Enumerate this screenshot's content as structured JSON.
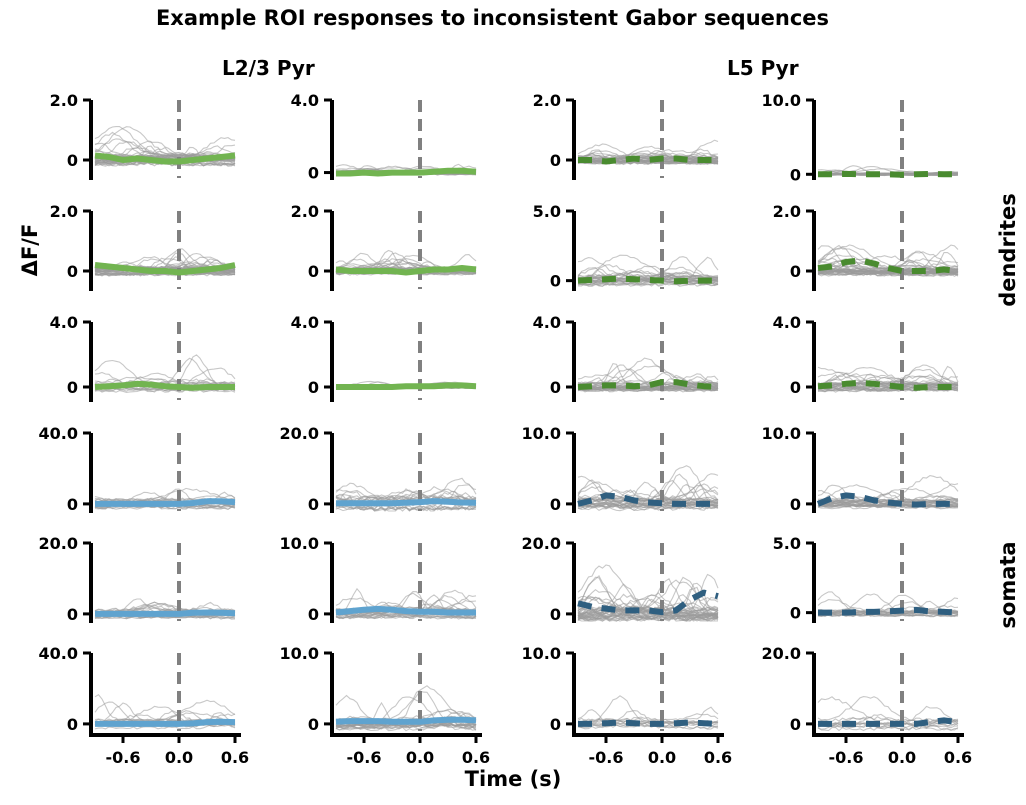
{
  "figure": {
    "title": "Example ROI responses to inconsistent Gabor sequences",
    "xlabel": "Time (s)",
    "ylabel": "ΔF/F",
    "columns": [
      "L2/3 Pyr",
      "",
      "L5 Pyr",
      ""
    ],
    "column_titles": [
      {
        "text": "L2/3 Pyr"
      },
      {
        "text": "L5 Pyr"
      }
    ],
    "row_groups": [
      {
        "label": "dendrites"
      },
      {
        "label": "somata"
      }
    ]
  },
  "colors": {
    "dendrites_l23": "#72b451",
    "dendrites_l5": "#4a8b30",
    "somata_l23": "#5fa3cf",
    "somata_l5": "#2f5f80",
    "traces": "#9a9a9a",
    "onset_line": "#808080"
  },
  "chart_data": {
    "type": "line",
    "x_range": [
      -0.9,
      0.6
    ],
    "x_ticks": [
      -0.6,
      0.0,
      0.6
    ],
    "x_tick_labels": [
      "-0.6",
      "0.0",
      "0.6"
    ],
    "onset_x": 0.0,
    "panels": [
      {
        "row": 0,
        "col": 0,
        "group": "dendrites",
        "celltype": "L2/3 Pyr",
        "ytick_labels": [
          "0",
          "2.0"
        ],
        "ytick_values": [
          0,
          2.0
        ],
        "ylim": [
          -0.6,
          2.0
        ],
        "n_traces": 40,
        "trace_peak": 1.3,
        "mean_style": "solid",
        "mean_x": [
          -0.9,
          -0.75,
          -0.6,
          -0.45,
          -0.3,
          -0.15,
          0.0,
          0.15,
          0.3,
          0.45,
          0.6
        ],
        "mean_y": [
          0.15,
          0.1,
          0.0,
          0.05,
          0.0,
          -0.05,
          -0.05,
          0.0,
          0.05,
          0.1,
          0.15
        ]
      },
      {
        "row": 0,
        "col": 1,
        "group": "dendrites",
        "celltype": "L2/3 Pyr",
        "ytick_labels": [
          "0",
          "4.0"
        ],
        "ytick_values": [
          0,
          4.0
        ],
        "ylim": [
          -0.3,
          4.0
        ],
        "n_traces": 25,
        "trace_peak": 0.9,
        "mean_style": "solid",
        "mean_x": [
          -0.9,
          -0.75,
          -0.6,
          -0.45,
          -0.3,
          -0.15,
          0.0,
          0.15,
          0.3,
          0.45,
          0.6
        ],
        "mean_y": [
          -0.05,
          -0.05,
          0.0,
          -0.05,
          0.0,
          0.0,
          0.0,
          0.05,
          0.1,
          0.1,
          0.05
        ]
      },
      {
        "row": 0,
        "col": 2,
        "group": "dendrites",
        "celltype": "L5 Pyr",
        "ytick_labels": [
          "0",
          "2.0"
        ],
        "ytick_values": [
          0,
          2.0
        ],
        "ylim": [
          -0.6,
          2.0
        ],
        "n_traces": 35,
        "trace_peak": 1.0,
        "mean_style": "dashed",
        "mean_x": [
          -0.9,
          -0.75,
          -0.6,
          -0.45,
          -0.3,
          -0.15,
          0.0,
          0.15,
          0.3,
          0.45,
          0.6
        ],
        "mean_y": [
          0.0,
          0.0,
          -0.05,
          0.0,
          0.05,
          0.0,
          0.05,
          0.05,
          0.0,
          0.0,
          0.0
        ]
      },
      {
        "row": 0,
        "col": 3,
        "group": "dendrites",
        "celltype": "L5 Pyr",
        "ytick_labels": [
          "0",
          "10.0"
        ],
        "ytick_values": [
          0,
          10.0
        ],
        "ylim": [
          -0.5,
          10.0
        ],
        "n_traces": 20,
        "trace_peak": 1.2,
        "mean_style": "dashed",
        "mean_x": [
          -0.9,
          -0.75,
          -0.6,
          -0.45,
          -0.3,
          -0.15,
          0.0,
          0.15,
          0.3,
          0.45,
          0.6
        ],
        "mean_y": [
          0.0,
          0.0,
          0.05,
          0.0,
          0.0,
          0.0,
          -0.05,
          0.0,
          0.05,
          0.0,
          0.0
        ]
      },
      {
        "row": 1,
        "col": 0,
        "group": "dendrites",
        "celltype": "L2/3 Pyr",
        "ytick_labels": [
          "0",
          "2.0"
        ],
        "ytick_values": [
          0,
          2.0
        ],
        "ylim": [
          -0.6,
          2.0
        ],
        "n_traces": 40,
        "trace_peak": 1.1,
        "mean_style": "solid",
        "mean_x": [
          -0.9,
          -0.75,
          -0.6,
          -0.45,
          -0.3,
          -0.15,
          0.0,
          0.15,
          0.3,
          0.45,
          0.6
        ],
        "mean_y": [
          0.2,
          0.15,
          0.1,
          0.05,
          0.0,
          0.0,
          -0.05,
          0.0,
          0.05,
          0.1,
          0.2
        ]
      },
      {
        "row": 1,
        "col": 1,
        "group": "dendrites",
        "celltype": "L2/3 Pyr",
        "ytick_labels": [
          "0",
          "2.0"
        ],
        "ytick_values": [
          0,
          2.0
        ],
        "ylim": [
          -0.6,
          2.0
        ],
        "n_traces": 35,
        "trace_peak": 0.9,
        "mean_style": "solid",
        "mean_x": [
          -0.9,
          -0.75,
          -0.6,
          -0.45,
          -0.3,
          -0.15,
          0.0,
          0.15,
          0.3,
          0.45,
          0.6
        ],
        "mean_y": [
          0.05,
          0.0,
          0.0,
          0.0,
          0.0,
          -0.05,
          0.0,
          0.05,
          0.05,
          0.1,
          0.05
        ]
      },
      {
        "row": 1,
        "col": 2,
        "group": "dendrites",
        "celltype": "L5 Pyr",
        "ytick_labels": [
          "0",
          "5.0"
        ],
        "ytick_values": [
          0,
          5.0
        ],
        "ylim": [
          -0.6,
          5.0
        ],
        "n_traces": 30,
        "trace_peak": 2.5,
        "mean_style": "dashed",
        "mean_x": [
          -0.9,
          -0.75,
          -0.6,
          -0.45,
          -0.3,
          -0.15,
          0.0,
          0.15,
          0.3,
          0.45,
          0.6
        ],
        "mean_y": [
          0.0,
          0.05,
          0.1,
          0.15,
          0.1,
          0.05,
          0.0,
          -0.05,
          0.0,
          0.0,
          0.0
        ]
      },
      {
        "row": 1,
        "col": 3,
        "group": "dendrites",
        "celltype": "L5 Pyr",
        "ytick_labels": [
          "0",
          "2.0"
        ],
        "ytick_values": [
          0,
          2.0
        ],
        "ylim": [
          -0.6,
          2.0
        ],
        "n_traces": 40,
        "trace_peak": 1.1,
        "mean_style": "dashed",
        "mean_x": [
          -0.9,
          -0.75,
          -0.6,
          -0.45,
          -0.3,
          -0.15,
          0.0,
          0.15,
          0.3,
          0.45,
          0.6
        ],
        "mean_y": [
          0.1,
          0.15,
          0.3,
          0.35,
          0.25,
          0.1,
          0.0,
          0.0,
          0.0,
          0.05,
          0.0
        ]
      },
      {
        "row": 2,
        "col": 0,
        "group": "dendrites",
        "celltype": "L2/3 Pyr",
        "ytick_labels": [
          "0",
          "4.0"
        ],
        "ytick_values": [
          0,
          4.0
        ],
        "ylim": [
          -0.8,
          4.0
        ],
        "n_traces": 20,
        "trace_peak": 2.2,
        "mean_style": "solid",
        "mean_x": [
          -0.9,
          -0.75,
          -0.6,
          -0.45,
          -0.3,
          -0.15,
          0.0,
          0.15,
          0.3,
          0.45,
          0.6
        ],
        "mean_y": [
          0.0,
          0.05,
          0.1,
          0.2,
          0.15,
          0.05,
          0.0,
          -0.05,
          0.0,
          0.0,
          0.0
        ]
      },
      {
        "row": 2,
        "col": 1,
        "group": "dendrites",
        "celltype": "L2/3 Pyr",
        "ytick_labels": [
          "0",
          "4.0"
        ],
        "ytick_values": [
          0,
          4.0
        ],
        "ylim": [
          -0.8,
          4.0
        ],
        "n_traces": 25,
        "trace_peak": 0.6,
        "mean_style": "solid",
        "mean_x": [
          -0.9,
          -0.75,
          -0.6,
          -0.45,
          -0.3,
          -0.15,
          0.0,
          0.15,
          0.3,
          0.45,
          0.6
        ],
        "mean_y": [
          0.0,
          0.0,
          0.0,
          0.0,
          0.0,
          0.05,
          0.05,
          0.05,
          0.1,
          0.1,
          0.05
        ]
      },
      {
        "row": 2,
        "col": 2,
        "group": "dendrites",
        "celltype": "L5 Pyr",
        "ytick_labels": [
          "0",
          "4.0"
        ],
        "ytick_values": [
          0,
          4.0
        ],
        "ylim": [
          -0.8,
          4.0
        ],
        "n_traces": 30,
        "trace_peak": 2.0,
        "mean_style": "dashed",
        "mean_x": [
          -0.9,
          -0.75,
          -0.6,
          -0.45,
          -0.3,
          -0.15,
          0.0,
          0.15,
          0.3,
          0.45,
          0.6
        ],
        "mean_y": [
          0.0,
          0.05,
          0.1,
          0.1,
          0.05,
          0.1,
          0.3,
          0.3,
          0.15,
          0.05,
          0.0
        ]
      },
      {
        "row": 2,
        "col": 3,
        "group": "dendrites",
        "celltype": "L5 Pyr",
        "ytick_labels": [
          "0",
          "4.0"
        ],
        "ytick_values": [
          0,
          4.0
        ],
        "ylim": [
          -0.8,
          4.0
        ],
        "n_traces": 30,
        "trace_peak": 2.0,
        "mean_style": "dashed",
        "mean_x": [
          -0.9,
          -0.75,
          -0.6,
          -0.45,
          -0.3,
          -0.15,
          0.0,
          0.15,
          0.3,
          0.45,
          0.6
        ],
        "mean_y": [
          0.05,
          0.1,
          0.2,
          0.25,
          0.2,
          0.1,
          0.0,
          -0.05,
          0.0,
          0.0,
          0.0
        ]
      },
      {
        "row": 3,
        "col": 0,
        "group": "somata",
        "celltype": "L2/3 Pyr",
        "ytick_labels": [
          "0",
          "40.0"
        ],
        "ytick_values": [
          0,
          40.0
        ],
        "ylim": [
          -4,
          40.0
        ],
        "n_traces": 20,
        "trace_peak": 20,
        "mean_style": "solid",
        "mean_x": [
          -0.9,
          -0.75,
          -0.6,
          -0.45,
          -0.3,
          -0.15,
          0.0,
          0.15,
          0.3,
          0.45,
          0.6
        ],
        "mean_y": [
          0.0,
          0.0,
          0.0,
          0.0,
          0.0,
          0.0,
          0.0,
          0.5,
          1.5,
          1.5,
          1.0
        ]
      },
      {
        "row": 3,
        "col": 1,
        "group": "somata",
        "celltype": "L2/3 Pyr",
        "ytick_labels": [
          "0",
          "20.0"
        ],
        "ytick_values": [
          0,
          20.0
        ],
        "ylim": [
          -2,
          20.0
        ],
        "n_traces": 20,
        "trace_peak": 15,
        "mean_style": "solid",
        "mean_x": [
          -0.9,
          -0.75,
          -0.6,
          -0.45,
          -0.3,
          -0.15,
          0.0,
          0.15,
          0.3,
          0.45,
          0.6
        ],
        "mean_y": [
          0.2,
          0.2,
          0.2,
          0.2,
          0.2,
          0.3,
          0.5,
          0.8,
          0.6,
          0.4,
          0.3
        ]
      },
      {
        "row": 3,
        "col": 2,
        "group": "somata",
        "celltype": "L5 Pyr",
        "ytick_labels": [
          "0",
          "10.0"
        ],
        "ytick_values": [
          0,
          10.0
        ],
        "ylim": [
          -1,
          10.0
        ],
        "n_traces": 30,
        "trace_peak": 6,
        "mean_style": "dashed",
        "mean_x": [
          -0.9,
          -0.75,
          -0.6,
          -0.45,
          -0.3,
          -0.15,
          0.0,
          0.15,
          0.3,
          0.45,
          0.6
        ],
        "mean_y": [
          0.0,
          0.5,
          1.2,
          1.0,
          0.5,
          0.2,
          0.1,
          0.0,
          0.0,
          0.0,
          0.0
        ]
      },
      {
        "row": 3,
        "col": 3,
        "group": "somata",
        "celltype": "L5 Pyr",
        "ytick_labels": [
          "0",
          "10.0"
        ],
        "ytick_values": [
          0,
          10.0
        ],
        "ylim": [
          -1,
          10.0
        ],
        "n_traces": 30,
        "trace_peak": 4.5,
        "mean_style": "dashed",
        "mean_x": [
          -0.9,
          -0.75,
          -0.6,
          -0.45,
          -0.3,
          -0.15,
          0.0,
          0.15,
          0.3,
          0.45,
          0.6
        ],
        "mean_y": [
          0.0,
          0.8,
          1.2,
          1.0,
          0.5,
          0.2,
          0.0,
          -0.1,
          0.0,
          0.0,
          0.0
        ]
      },
      {
        "row": 4,
        "col": 0,
        "group": "somata",
        "celltype": "L2/3 Pyr",
        "ytick_labels": [
          "0",
          "20.0"
        ],
        "ytick_values": [
          0,
          20.0
        ],
        "ylim": [
          -2,
          20.0
        ],
        "n_traces": 20,
        "trace_peak": 10,
        "mean_style": "solid",
        "mean_x": [
          -0.9,
          -0.75,
          -0.6,
          -0.45,
          -0.3,
          -0.15,
          0.0,
          0.15,
          0.3,
          0.45,
          0.6
        ],
        "mean_y": [
          0.0,
          0.0,
          0.0,
          0.0,
          0.0,
          0.0,
          0.0,
          0.3,
          0.4,
          0.3,
          0.2
        ]
      },
      {
        "row": 4,
        "col": 1,
        "group": "somata",
        "celltype": "L2/3 Pyr",
        "ytick_labels": [
          "0",
          "10.0"
        ],
        "ytick_values": [
          0,
          10.0
        ],
        "ylim": [
          -1,
          10.0
        ],
        "n_traces": 25,
        "trace_peak": 5,
        "mean_style": "solid",
        "mean_x": [
          -0.9,
          -0.75,
          -0.6,
          -0.45,
          -0.3,
          -0.15,
          0.0,
          0.15,
          0.3,
          0.45,
          0.6
        ],
        "mean_y": [
          0.2,
          0.4,
          0.6,
          0.7,
          0.6,
          0.4,
          0.3,
          0.3,
          0.2,
          0.2,
          0.2
        ]
      },
      {
        "row": 4,
        "col": 2,
        "group": "somata",
        "celltype": "L5 Pyr",
        "ytick_labels": [
          "0",
          "20.0"
        ],
        "ytick_values": [
          0,
          20.0
        ],
        "ylim": [
          -2,
          20.0
        ],
        "n_traces": 40,
        "trace_peak": 16,
        "mean_style": "dashed",
        "mean_x": [
          -0.9,
          -0.75,
          -0.6,
          -0.45,
          -0.3,
          -0.15,
          0.0,
          0.15,
          0.3,
          0.45,
          0.6
        ],
        "mean_y": [
          3.0,
          2.0,
          1.5,
          1.0,
          1.0,
          1.0,
          0.5,
          1.0,
          4.0,
          6.0,
          5.0
        ]
      },
      {
        "row": 4,
        "col": 3,
        "group": "somata",
        "celltype": "L5 Pyr",
        "ytick_labels": [
          "0",
          "5.0"
        ],
        "ytick_values": [
          0,
          5.0
        ],
        "ylim": [
          -0.6,
          5.0
        ],
        "n_traces": 20,
        "trace_peak": 2.0,
        "mean_style": "dashed",
        "mean_x": [
          -0.9,
          -0.75,
          -0.6,
          -0.45,
          -0.3,
          -0.15,
          0.0,
          0.15,
          0.3,
          0.45,
          0.6
        ],
        "mean_y": [
          0.0,
          0.0,
          0.0,
          0.05,
          0.05,
          0.1,
          0.15,
          0.2,
          0.1,
          0.05,
          0.0
        ]
      },
      {
        "row": 5,
        "col": 0,
        "group": "somata",
        "celltype": "L2/3 Pyr",
        "ytick_labels": [
          "0",
          "40.0"
        ],
        "ytick_values": [
          0,
          40.0
        ],
        "ylim": [
          -4,
          40.0
        ],
        "n_traces": 20,
        "trace_peak": 18,
        "mean_style": "solid",
        "mean_x": [
          -0.9,
          -0.75,
          -0.6,
          -0.45,
          -0.3,
          -0.15,
          0.0,
          0.15,
          0.3,
          0.45,
          0.6
        ],
        "mean_y": [
          0.0,
          0.0,
          0.0,
          0.0,
          0.0,
          0.0,
          0.0,
          0.3,
          1.0,
          1.2,
          1.0
        ]
      },
      {
        "row": 5,
        "col": 1,
        "group": "somata",
        "celltype": "L2/3 Pyr",
        "ytick_labels": [
          "0",
          "10.0"
        ],
        "ytick_values": [
          0,
          10.0
        ],
        "ylim": [
          -1,
          10.0
        ],
        "n_traces": 25,
        "trace_peak": 6,
        "mean_style": "solid",
        "mean_x": [
          -0.9,
          -0.75,
          -0.6,
          -0.45,
          -0.3,
          -0.15,
          0.0,
          0.15,
          0.3,
          0.45,
          0.6
        ],
        "mean_y": [
          0.3,
          0.4,
          0.4,
          0.4,
          0.3,
          0.3,
          0.3,
          0.5,
          0.6,
          0.6,
          0.5
        ]
      },
      {
        "row": 5,
        "col": 2,
        "group": "somata",
        "celltype": "L5 Pyr",
        "ytick_labels": [
          "0",
          "10.0"
        ],
        "ytick_values": [
          0,
          10.0
        ],
        "ylim": [
          -1,
          10.0
        ],
        "n_traces": 12,
        "trace_peak": 5,
        "mean_style": "dashed",
        "mean_x": [
          -0.9,
          -0.75,
          -0.6,
          -0.45,
          -0.3,
          -0.15,
          0.0,
          0.15,
          0.3,
          0.45,
          0.6
        ],
        "mean_y": [
          0.0,
          0.0,
          0.1,
          0.2,
          0.1,
          0.0,
          0.0,
          0.1,
          0.2,
          0.1,
          0.0
        ]
      },
      {
        "row": 5,
        "col": 3,
        "group": "somata",
        "celltype": "L5 Pyr",
        "ytick_labels": [
          "0",
          "20.0"
        ],
        "ytick_values": [
          0,
          20.0
        ],
        "ylim": [
          -2,
          20.0
        ],
        "n_traces": 12,
        "trace_peak": 12,
        "mean_style": "dashed",
        "mean_x": [
          -0.9,
          -0.75,
          -0.6,
          -0.45,
          -0.3,
          -0.15,
          0.0,
          0.15,
          0.3,
          0.45,
          0.6
        ],
        "mean_y": [
          0.0,
          0.0,
          0.0,
          0.0,
          0.0,
          0.0,
          0.0,
          0.0,
          0.5,
          1.0,
          0.5
        ]
      }
    ]
  }
}
